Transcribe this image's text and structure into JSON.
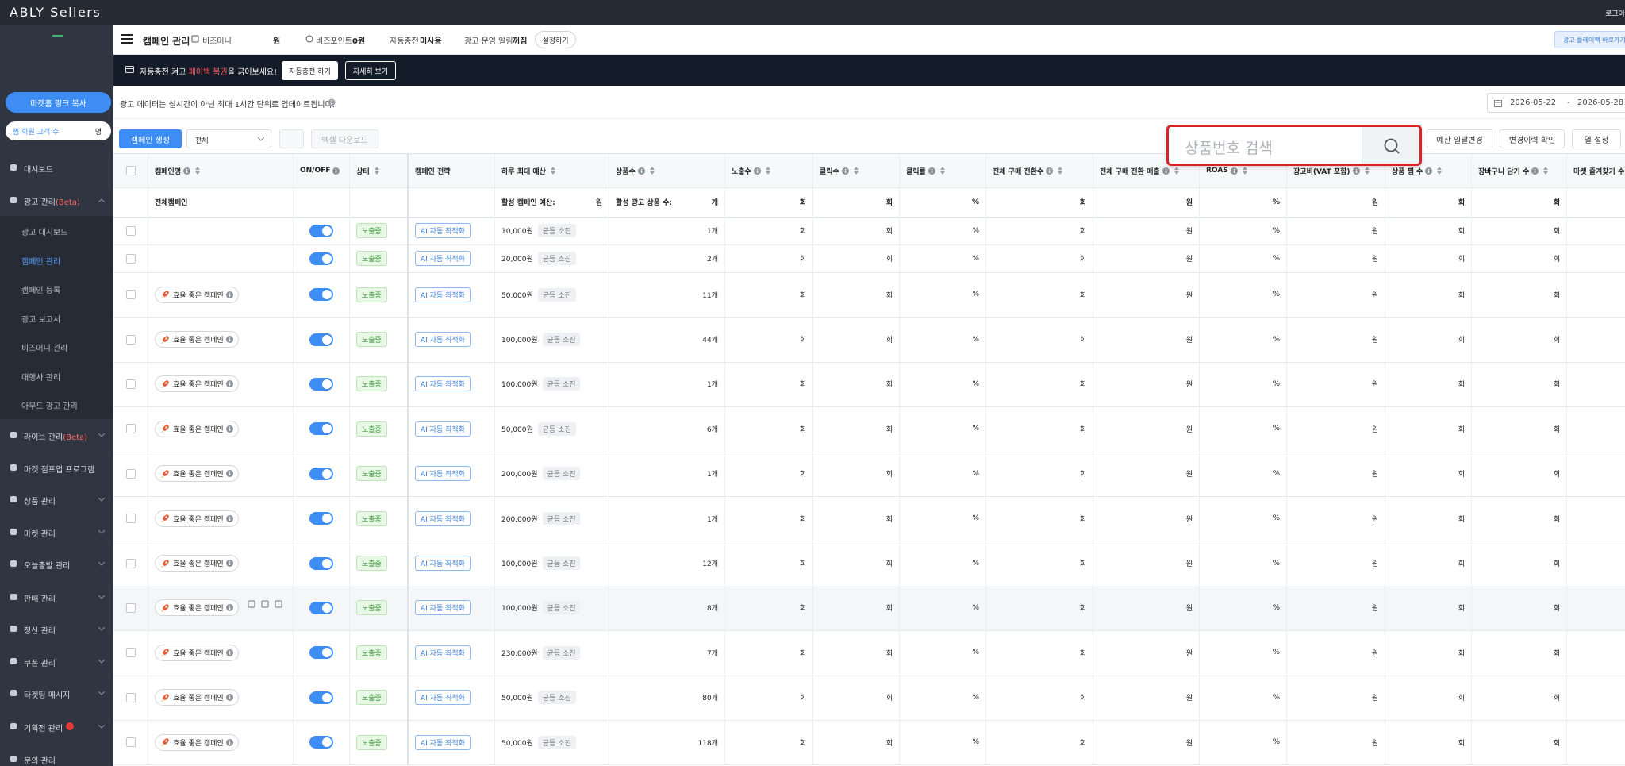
{
  "header": {
    "brand": "ABLY Sellers",
    "logout": "로그아"
  },
  "sidebar": {
    "link_button": "마켓홈 링크 복사",
    "wish_label": "찜 회원 고객 수",
    "wish_unit": "명",
    "dashboard": "대시보드",
    "ad_menu": {
      "label": "광고 관리",
      "badge": "(Beta)",
      "items": [
        "광고 대시보드",
        "캠페인 관리",
        "캠페인 등록",
        "광고 보고서",
        "비즈머니 관리",
        "대행사 관리",
        "아무드 광고 관리"
      ]
    },
    "live_menu": {
      "label": "라이브 관리",
      "badge": "(Beta)"
    },
    "menu": [
      "마켓 점프업 프로그램",
      "상품 관리",
      "마켓 관리",
      "오늘출발 관리",
      "판매 관리",
      "정산 관리",
      "쿠폰 관리",
      "타겟팅 메시지",
      "기획전 관리",
      "문의 관리"
    ]
  },
  "topbar": {
    "title": "캠페인 관리",
    "bizmoney_label": "비즈머니",
    "bizmoney_unit": "원",
    "bizpoint_label": "비즈포인트",
    "bizpoint_value": "0원",
    "autocharge_label": "자동충전",
    "autocharge_value": "미사용",
    "alert_label": "광고 운영 알림",
    "alert_value": "꺼짐",
    "settings_button": "설정하기",
    "playpack_link": "광고 플레이팩 바로가기"
  },
  "banner": {
    "text_before": "자동충전 켜고 ",
    "highlight": "페이백 복권",
    "text_after": "을 긁어보세요!",
    "primary_button": "자동충전 하기",
    "secondary_button": "자세히 보기"
  },
  "notice": {
    "text": "광고 데이터는 실시간이 아닌 최대 1시간 단위로 업데이트됩니다.",
    "date_start": "2026-05-22",
    "date_separator": "-",
    "date_end": "2026-05-28"
  },
  "toolbar": {
    "create_button": "캠페인 생성",
    "filter": "전체",
    "excel_button": "엑셀 다운로드",
    "budget_button": "예산 일괄변경",
    "history_button": "변경이력 확인",
    "columns_button": "열 설정"
  },
  "search": {
    "placeholder": "상품번호 검색"
  },
  "table": {
    "columns": [
      "캠페인명",
      "ON/OFF",
      "상태",
      "캠페인 전략",
      "하루 최대 예산",
      "상품수",
      "노출수",
      "클릭수",
      "클릭률",
      "전체 구매 전환수",
      "전체 구매 전환 매출",
      "ROAS",
      "광고비(VAT 포함)",
      "상품 찜 수",
      "장바구니 담기 수",
      "마켓 즐겨찾기 수"
    ],
    "summary": {
      "name": "전체캠페인",
      "budget_label": "활성 캠페인 예산:",
      "budget_unit": "원",
      "products_label": "활성 광고 상품 수:",
      "products_unit": "개",
      "units": [
        "회",
        "회",
        "%",
        "회",
        "원",
        "%",
        "원",
        "회",
        "회",
        "회"
      ]
    },
    "rows": [
      {
        "name": null,
        "status": "노출중",
        "strategy": "AI 자동 최적화",
        "budget": "10,000원",
        "pacing": "균등 소진",
        "products": "1개",
        "units": [
          "회",
          "회",
          "%",
          "회",
          "원",
          "%",
          "원",
          "회",
          "회",
          "회"
        ]
      },
      {
        "name": null,
        "status": "노출중",
        "strategy": "AI 자동 최적화",
        "budget": "20,000원",
        "pacing": "균등 소진",
        "products": "2개",
        "units": [
          "회",
          "회",
          "%",
          "회",
          "원",
          "%",
          "원",
          "회",
          "회",
          "회"
        ]
      },
      {
        "name": "효율 좋은 캠페인",
        "status": "노출중",
        "strategy": "AI 자동 최적화",
        "budget": "50,000원",
        "pacing": "균등 소진",
        "products": "11개",
        "units": [
          "회",
          "회",
          "%",
          "회",
          "원",
          "%",
          "원",
          "회",
          "회",
          "회"
        ]
      },
      {
        "name": "효율 좋은 캠페인",
        "status": "노출중",
        "strategy": "AI 자동 최적화",
        "budget": "100,000원",
        "pacing": "균등 소진",
        "products": "44개",
        "units": [
          "회",
          "회",
          "%",
          "회",
          "원",
          "%",
          "원",
          "회",
          "회",
          "회"
        ]
      },
      {
        "name": "효율 좋은 캠페인",
        "status": "노출중",
        "strategy": "AI 자동 최적화",
        "budget": "100,000원",
        "pacing": "균등 소진",
        "products": "1개",
        "units": [
          "회",
          "회",
          "%",
          "회",
          "원",
          "%",
          "원",
          "회",
          "회",
          "회"
        ]
      },
      {
        "name": "효율 좋은 캠페인",
        "status": "노출중",
        "strategy": "AI 자동 최적화",
        "budget": "50,000원",
        "pacing": "균등 소진",
        "products": "6개",
        "units": [
          "회",
          "회",
          "%",
          "회",
          "원",
          "%",
          "원",
          "회",
          "회",
          "회"
        ]
      },
      {
        "name": "효율 좋은 캠페인",
        "status": "노출중",
        "strategy": "AI 자동 최적화",
        "budget": "200,000원",
        "pacing": "균등 소진",
        "products": "1개",
        "units": [
          "회",
          "회",
          "%",
          "회",
          "원",
          "%",
          "원",
          "회",
          "회",
          "회"
        ]
      },
      {
        "name": "효율 좋은 캠페인",
        "status": "노출중",
        "strategy": "AI 자동 최적화",
        "budget": "200,000원",
        "pacing": "균등 소진",
        "products": "1개",
        "units": [
          "회",
          "회",
          "%",
          "회",
          "원",
          "%",
          "원",
          "회",
          "회",
          "회"
        ]
      },
      {
        "name": "효율 좋은 캠페인",
        "status": "노출중",
        "strategy": "AI 자동 최적화",
        "budget": "100,000원",
        "pacing": "균등 소진",
        "products": "12개",
        "units": [
          "회",
          "회",
          "%",
          "회",
          "원",
          "%",
          "원",
          "회",
          "회",
          "회"
        ]
      },
      {
        "name": "효율 좋은 캠페인",
        "status": "노출중",
        "strategy": "AI 자동 최적화",
        "budget": "100,000원",
        "pacing": "균등 소진",
        "products": "8개",
        "units": [
          "회",
          "회",
          "%",
          "회",
          "원",
          "%",
          "원",
          "회",
          "회",
          "회"
        ]
      },
      {
        "name": "효율 좋은 캠페인",
        "status": "노출중",
        "strategy": "AI 자동 최적화",
        "budget": "230,000원",
        "pacing": "균등 소진",
        "products": "7개",
        "units": [
          "회",
          "회",
          "%",
          "회",
          "원",
          "%",
          "원",
          "회",
          "회",
          "회"
        ]
      },
      {
        "name": "효율 좋은 캠페인",
        "status": "노출중",
        "strategy": "AI 자동 최적화",
        "budget": "50,000원",
        "pacing": "균등 소진",
        "products": "80개",
        "units": [
          "회",
          "회",
          "%",
          "회",
          "원",
          "%",
          "원",
          "회",
          "회",
          "회"
        ]
      },
      {
        "name": "효율 좋은 캠페인",
        "status": "노출중",
        "strategy": "AI 자동 최적화",
        "budget": "50,000원",
        "pacing": "균등 소진",
        "products": "118개",
        "units": [
          "회",
          "회",
          "%",
          "회",
          "원",
          "%",
          "원",
          "회",
          "회",
          "회"
        ]
      }
    ]
  }
}
